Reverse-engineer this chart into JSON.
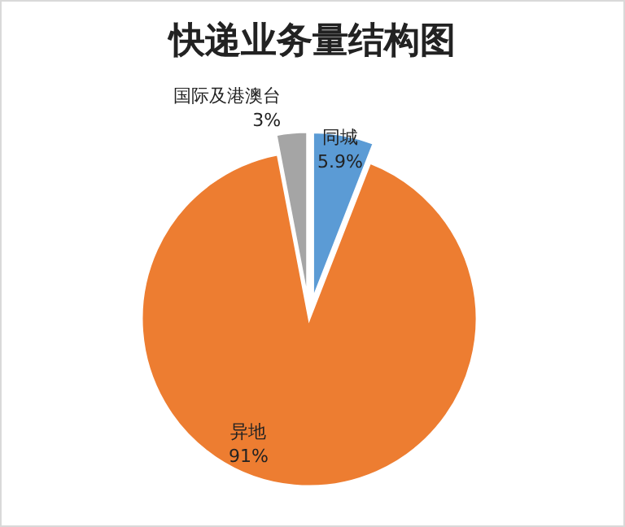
{
  "chart_data": {
    "type": "pie",
    "title": "快递业务量结构图",
    "categories": [
      "同城",
      "异地",
      "国际及港澳台"
    ],
    "values": [
      5.9,
      91,
      3
    ],
    "value_labels": [
      "5.9%",
      "91%",
      "3%"
    ],
    "colors": [
      "#5b9bd5",
      "#ed7d31",
      "#a5a5a5"
    ],
    "legend": false
  }
}
